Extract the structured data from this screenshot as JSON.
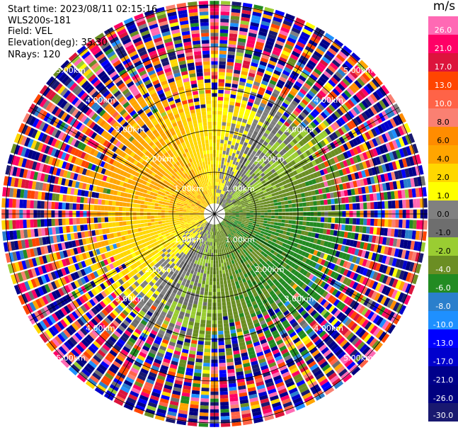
{
  "header": {
    "start_time": "Start time: 2023/08/11 02:15:16",
    "instrument": "WLS200s-181",
    "field": "Field: VEL",
    "elevation": "Elevation(deg): 35.30",
    "nrays": "NRays: 120"
  },
  "chart_data": {
    "type": "ppi",
    "field": "VEL",
    "units": "m/s",
    "n_rays": 120,
    "elevation_deg": 35.3,
    "range_rings_km": [
      1.0,
      2.0,
      3.0,
      4.0,
      5.0
    ],
    "ring_labels": [
      "1.00km",
      "2.00km",
      "3.00km",
      "4.00km",
      "5.00km"
    ],
    "max_range_km": 5.1,
    "colorbar": {
      "levels": [
        -30.0,
        -26.0,
        -21.0,
        -17.0,
        -13.0,
        -10.0,
        -8.0,
        -6.0,
        -4.0,
        -2.0,
        -1.0,
        0.0,
        1.0,
        2.0,
        4.0,
        6.0,
        8.0,
        10.0,
        13.0,
        17.0,
        21.0,
        26.0
      ],
      "tick_labels": [
        "-30.0",
        "-26.0",
        "-21.0",
        "-17.0",
        "-13.0",
        "-10.0",
        "-8.0",
        "-6.0",
        "-4.0",
        "-2.0",
        "-1.0",
        "0.0",
        "1.0",
        "2.0",
        "4.0",
        "6.0",
        "8.0",
        "10.0",
        "13.0",
        "17.0",
        "21.0",
        "26.0"
      ],
      "colors": [
        "#191970",
        "#000080",
        "#00008b",
        "#0000cd",
        "#0000ff",
        "#1e90ff",
        "#2a7fcc",
        "#228b22",
        "#6b8e23",
        "#9acd32",
        "#6e6e6e",
        "#808080",
        "#ffff00",
        "#ffd700",
        "#ffa500",
        "#ff8c00",
        "#fa8072",
        "#ff6347",
        "#ff4500",
        "#dc143c",
        "#ff0066",
        "#ff69b4"
      ]
    },
    "pattern": "approaching (negative, green/blue) to the east/south-east; receding (positive, orange/yellow) to the west/north-west; aliased noise beyond ~3 km"
  }
}
